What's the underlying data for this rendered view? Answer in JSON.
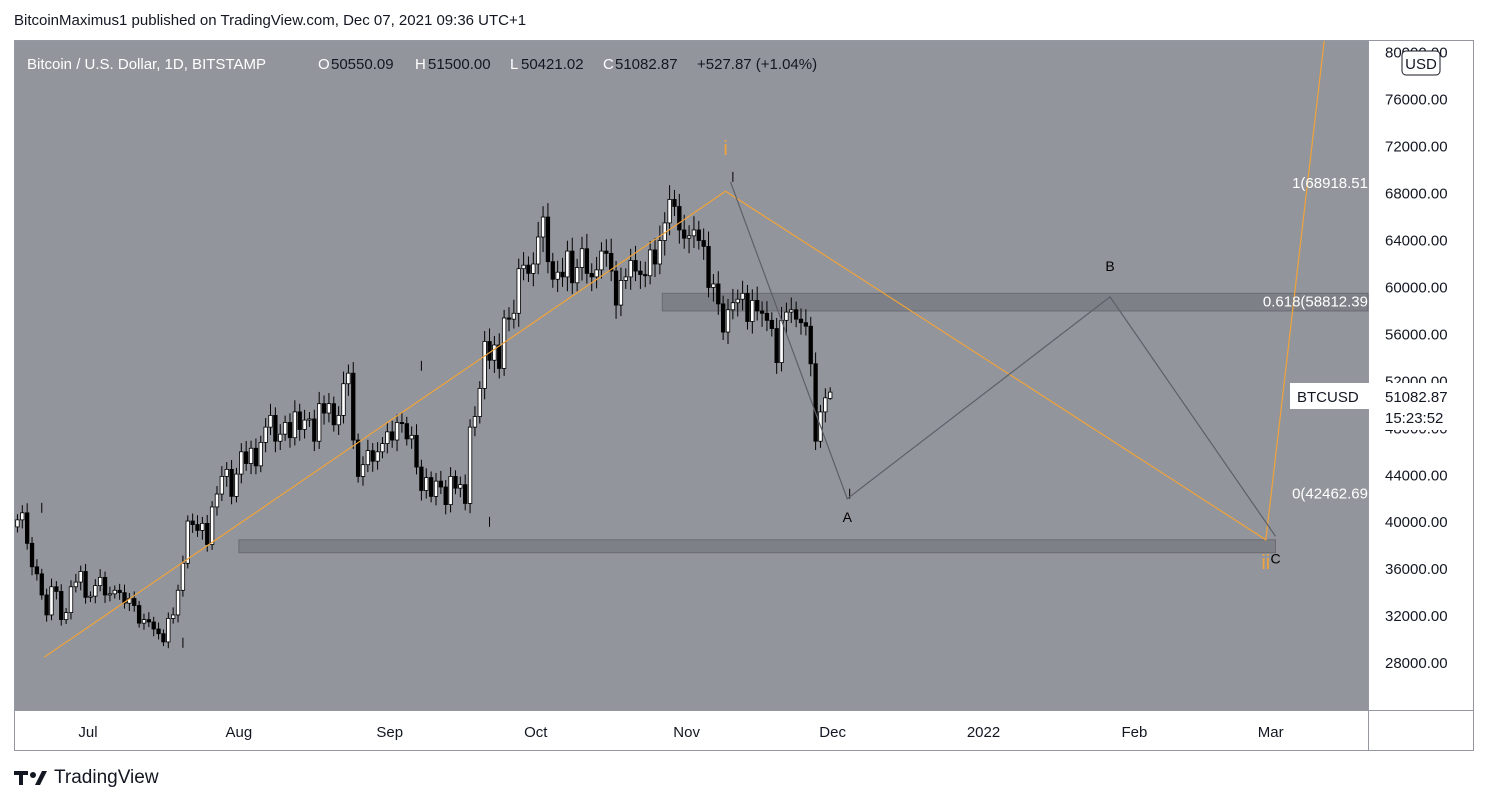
{
  "header": {
    "published": "BitcoinMaximus1 published on TradingView.com, Dec 07, 2021 09:36 UTC+1"
  },
  "footer": {
    "logo_icon": "tradingview-logo-icon",
    "brand": "TradingView"
  },
  "colors": {
    "pane_bg": "#93959c",
    "axis_bg": "#ffffff",
    "candle_up": "#ffffff",
    "candle_down": "#000000",
    "wave_line": "#f0a33a",
    "abc_line": "#5d6068",
    "zone_fill": "#7e8087",
    "label_orange": "#f0a33a"
  },
  "chart_data": {
    "type": "candlestick",
    "symbol_title": "Bitcoin / U.S. Dollar, 1D, BITSTAMP",
    "ohlc": {
      "o_label": "O",
      "open": "50550.09",
      "h_label": "H",
      "high": "51500.00",
      "l_label": "L",
      "low": "50421.02",
      "c_label": "C",
      "close": "51082.87",
      "change": "+527.87 (+1.04%)"
    },
    "currency_button": "USD",
    "price_tag": {
      "symbol": "BTCUSD",
      "price": "51082.87",
      "countdown": "15:23:52"
    },
    "ylim": [
      24000,
      81000
    ],
    "y_ticks": [
      {
        "v": 80000,
        "label": "80000.00"
      },
      {
        "v": 76000,
        "label": "76000.00"
      },
      {
        "v": 72000,
        "label": "72000.00"
      },
      {
        "v": 68000,
        "label": "68000.00"
      },
      {
        "v": 64000,
        "label": "64000.00"
      },
      {
        "v": 60000,
        "label": "60000.00"
      },
      {
        "v": 56000,
        "label": "56000.00"
      },
      {
        "v": 52000,
        "label": "52000.00"
      },
      {
        "v": 48000,
        "label": "48000.00"
      },
      {
        "v": 44000,
        "label": "44000.00"
      },
      {
        "v": 40000,
        "label": "40000.00"
      },
      {
        "v": 36000,
        "label": "36000.00"
      },
      {
        "v": 32000,
        "label": "32000.00"
      },
      {
        "v": 28000,
        "label": "28000.00"
      }
    ],
    "x_range": [
      "2021-06-16",
      "2022-03-21"
    ],
    "x_ticks": [
      {
        "date": "2021-07-01",
        "label": "Jul"
      },
      {
        "date": "2021-08-01",
        "label": "Aug"
      },
      {
        "date": "2021-09-01",
        "label": "Sep"
      },
      {
        "date": "2021-10-01",
        "label": "Oct"
      },
      {
        "date": "2021-11-01",
        "label": "Nov"
      },
      {
        "date": "2021-12-01",
        "label": "Dec"
      },
      {
        "date": "2022-01-01",
        "label": "2022"
      },
      {
        "date": "2022-02-01",
        "label": "Feb"
      },
      {
        "date": "2022-03-01",
        "label": "Mar"
      }
    ],
    "closes_start_date": "2021-06-16",
    "closes": [
      40200,
      40800,
      38200,
      36200,
      35600,
      33800,
      32100,
      34500,
      34100,
      31700,
      32300,
      34500,
      34900,
      35800,
      33600,
      33700,
      34600,
      35300,
      33800,
      33900,
      34200,
      34000,
      33100,
      33500,
      32900,
      31400,
      31700,
      31500,
      30900,
      30500,
      29800,
      31800,
      32100,
      34200,
      36500,
      40100,
      39800,
      39300,
      39900,
      38100,
      41300,
      42400,
      43900,
      44500,
      42200,
      44100,
      46000,
      45000,
      46300,
      44800,
      46800,
      48100,
      49100,
      46900,
      47500,
      48500,
      47200,
      49400,
      47900,
      48700,
      48800,
      46900,
      50100,
      49300,
      50100,
      48300,
      49100,
      51800,
      52700,
      47000,
      43900,
      44900,
      46100,
      45200,
      46000,
      46700,
      47700,
      47000,
      48500,
      48400,
      47100,
      47400,
      44700,
      42700,
      43800,
      42200,
      43500,
      43000,
      41500,
      43900,
      42900,
      43200,
      41600,
      48100,
      49000,
      51400,
      55400,
      53800,
      55100,
      53100,
      57400,
      57300,
      57800,
      61600,
      61900,
      61200,
      62000,
      64300,
      66000,
      62200,
      60700,
      61300,
      60900,
      63100,
      60400,
      61700,
      63300,
      61200,
      60900,
      61500,
      63100,
      62900,
      61400,
      58500,
      60600,
      60900,
      62300,
      61400,
      61100,
      61000,
      63200,
      62000,
      64000,
      65500,
      67500,
      66900,
      64900,
      64200,
      64400,
      64900,
      64000,
      63500,
      60000,
      60300,
      58600,
      56200,
      58100,
      58700,
      59000,
      59500,
      57100,
      58900,
      58000,
      57800,
      57200,
      56500,
      53600,
      57200,
      57900,
      58100,
      57300,
      57000,
      56700,
      53500,
      46900,
      49400,
      50600,
      51083
    ],
    "ohlc_open_last": 50550.09,
    "ohlc_high_last": 51500.0,
    "ohlc_low_last": 50421.02,
    "extra_points": [
      {
        "date": "2021-06-21",
        "value": 40800
      },
      {
        "date": "2021-07-20",
        "value": 29300
      },
      {
        "date": "2021-09-07",
        "value": 52900
      },
      {
        "date": "2021-09-21",
        "value": 39600
      },
      {
        "date": "2021-11-10",
        "value": 69000
      },
      {
        "date": "2021-12-04",
        "value": 42000
      }
    ],
    "wave_labels": [
      {
        "text": "i",
        "date": "2021-11-09",
        "value": 71300,
        "color": "orange"
      },
      {
        "text": "ii",
        "date": "2022-02-28",
        "value": 36000,
        "color": "orange"
      },
      {
        "text": "A",
        "date": "2021-12-04",
        "value": 40000,
        "color": "black"
      },
      {
        "text": "B",
        "date": "2022-01-27",
        "value": 61400,
        "color": "black"
      },
      {
        "text": "C",
        "date": "2022-03-02",
        "value": 36500,
        "color": "black"
      }
    ],
    "wave_line": [
      {
        "date": "2021-06-22",
        "value": 28500
      },
      {
        "date": "2021-11-09",
        "value": 68200
      },
      {
        "date": "2022-02-28",
        "value": 38500
      },
      {
        "date": "2022-03-12",
        "value": 81000
      }
    ],
    "abc_path": [
      {
        "date": "2021-11-10",
        "value": 69000
      },
      {
        "date": "2021-12-04",
        "value": 42000
      },
      {
        "date": "2022-01-27",
        "value": 59200
      },
      {
        "date": "2022-03-02",
        "value": 38800
      }
    ],
    "support_zone": {
      "date_from": "2021-08-01",
      "date_to": "2022-03-02",
      "low": 37400,
      "high": 38500
    },
    "resistance_zone": {
      "date_from": "2021-10-27",
      "date_to": "2022-03-21",
      "low": 58000,
      "high": 59500
    },
    "fib_levels": [
      {
        "label": "1(68918.51",
        "value": 68918.51
      },
      {
        "label": "0.618(58812.39",
        "value": 58812.39
      },
      {
        "label": "0(42462.69",
        "value": 42462.69
      }
    ]
  }
}
